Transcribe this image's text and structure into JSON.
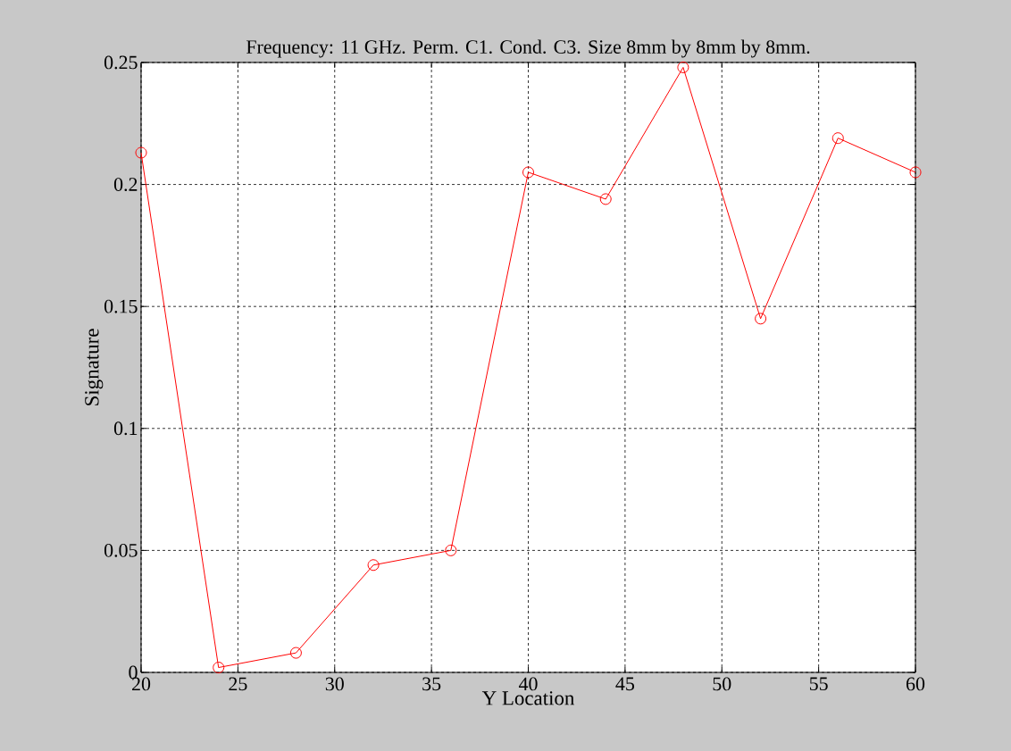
{
  "chart_data": {
    "type": "line",
    "title": "Frequency: 11 GHz. Perm. C1. Cond. C3. Size 8mm by 8mm by 8mm.",
    "xlabel": "Y Location",
    "ylabel": "Signature",
    "x": [
      20,
      24,
      28,
      32,
      36,
      40,
      44,
      48,
      52,
      56,
      60
    ],
    "series": [
      {
        "color": "#ff0000",
        "values": [
          0.213,
          0.002,
          0.008,
          0.044,
          0.05,
          0.205,
          0.194,
          0.248,
          0.145,
          0.219,
          0.205
        ]
      }
    ],
    "xlim": [
      20,
      60
    ],
    "ylim": [
      0,
      0.25
    ],
    "xticks": [
      20,
      25,
      30,
      35,
      40,
      45,
      50,
      55,
      60
    ],
    "yticks": [
      0,
      0.05,
      0.1,
      0.15,
      0.2,
      0.25
    ],
    "grid": true,
    "marker": "circle"
  }
}
